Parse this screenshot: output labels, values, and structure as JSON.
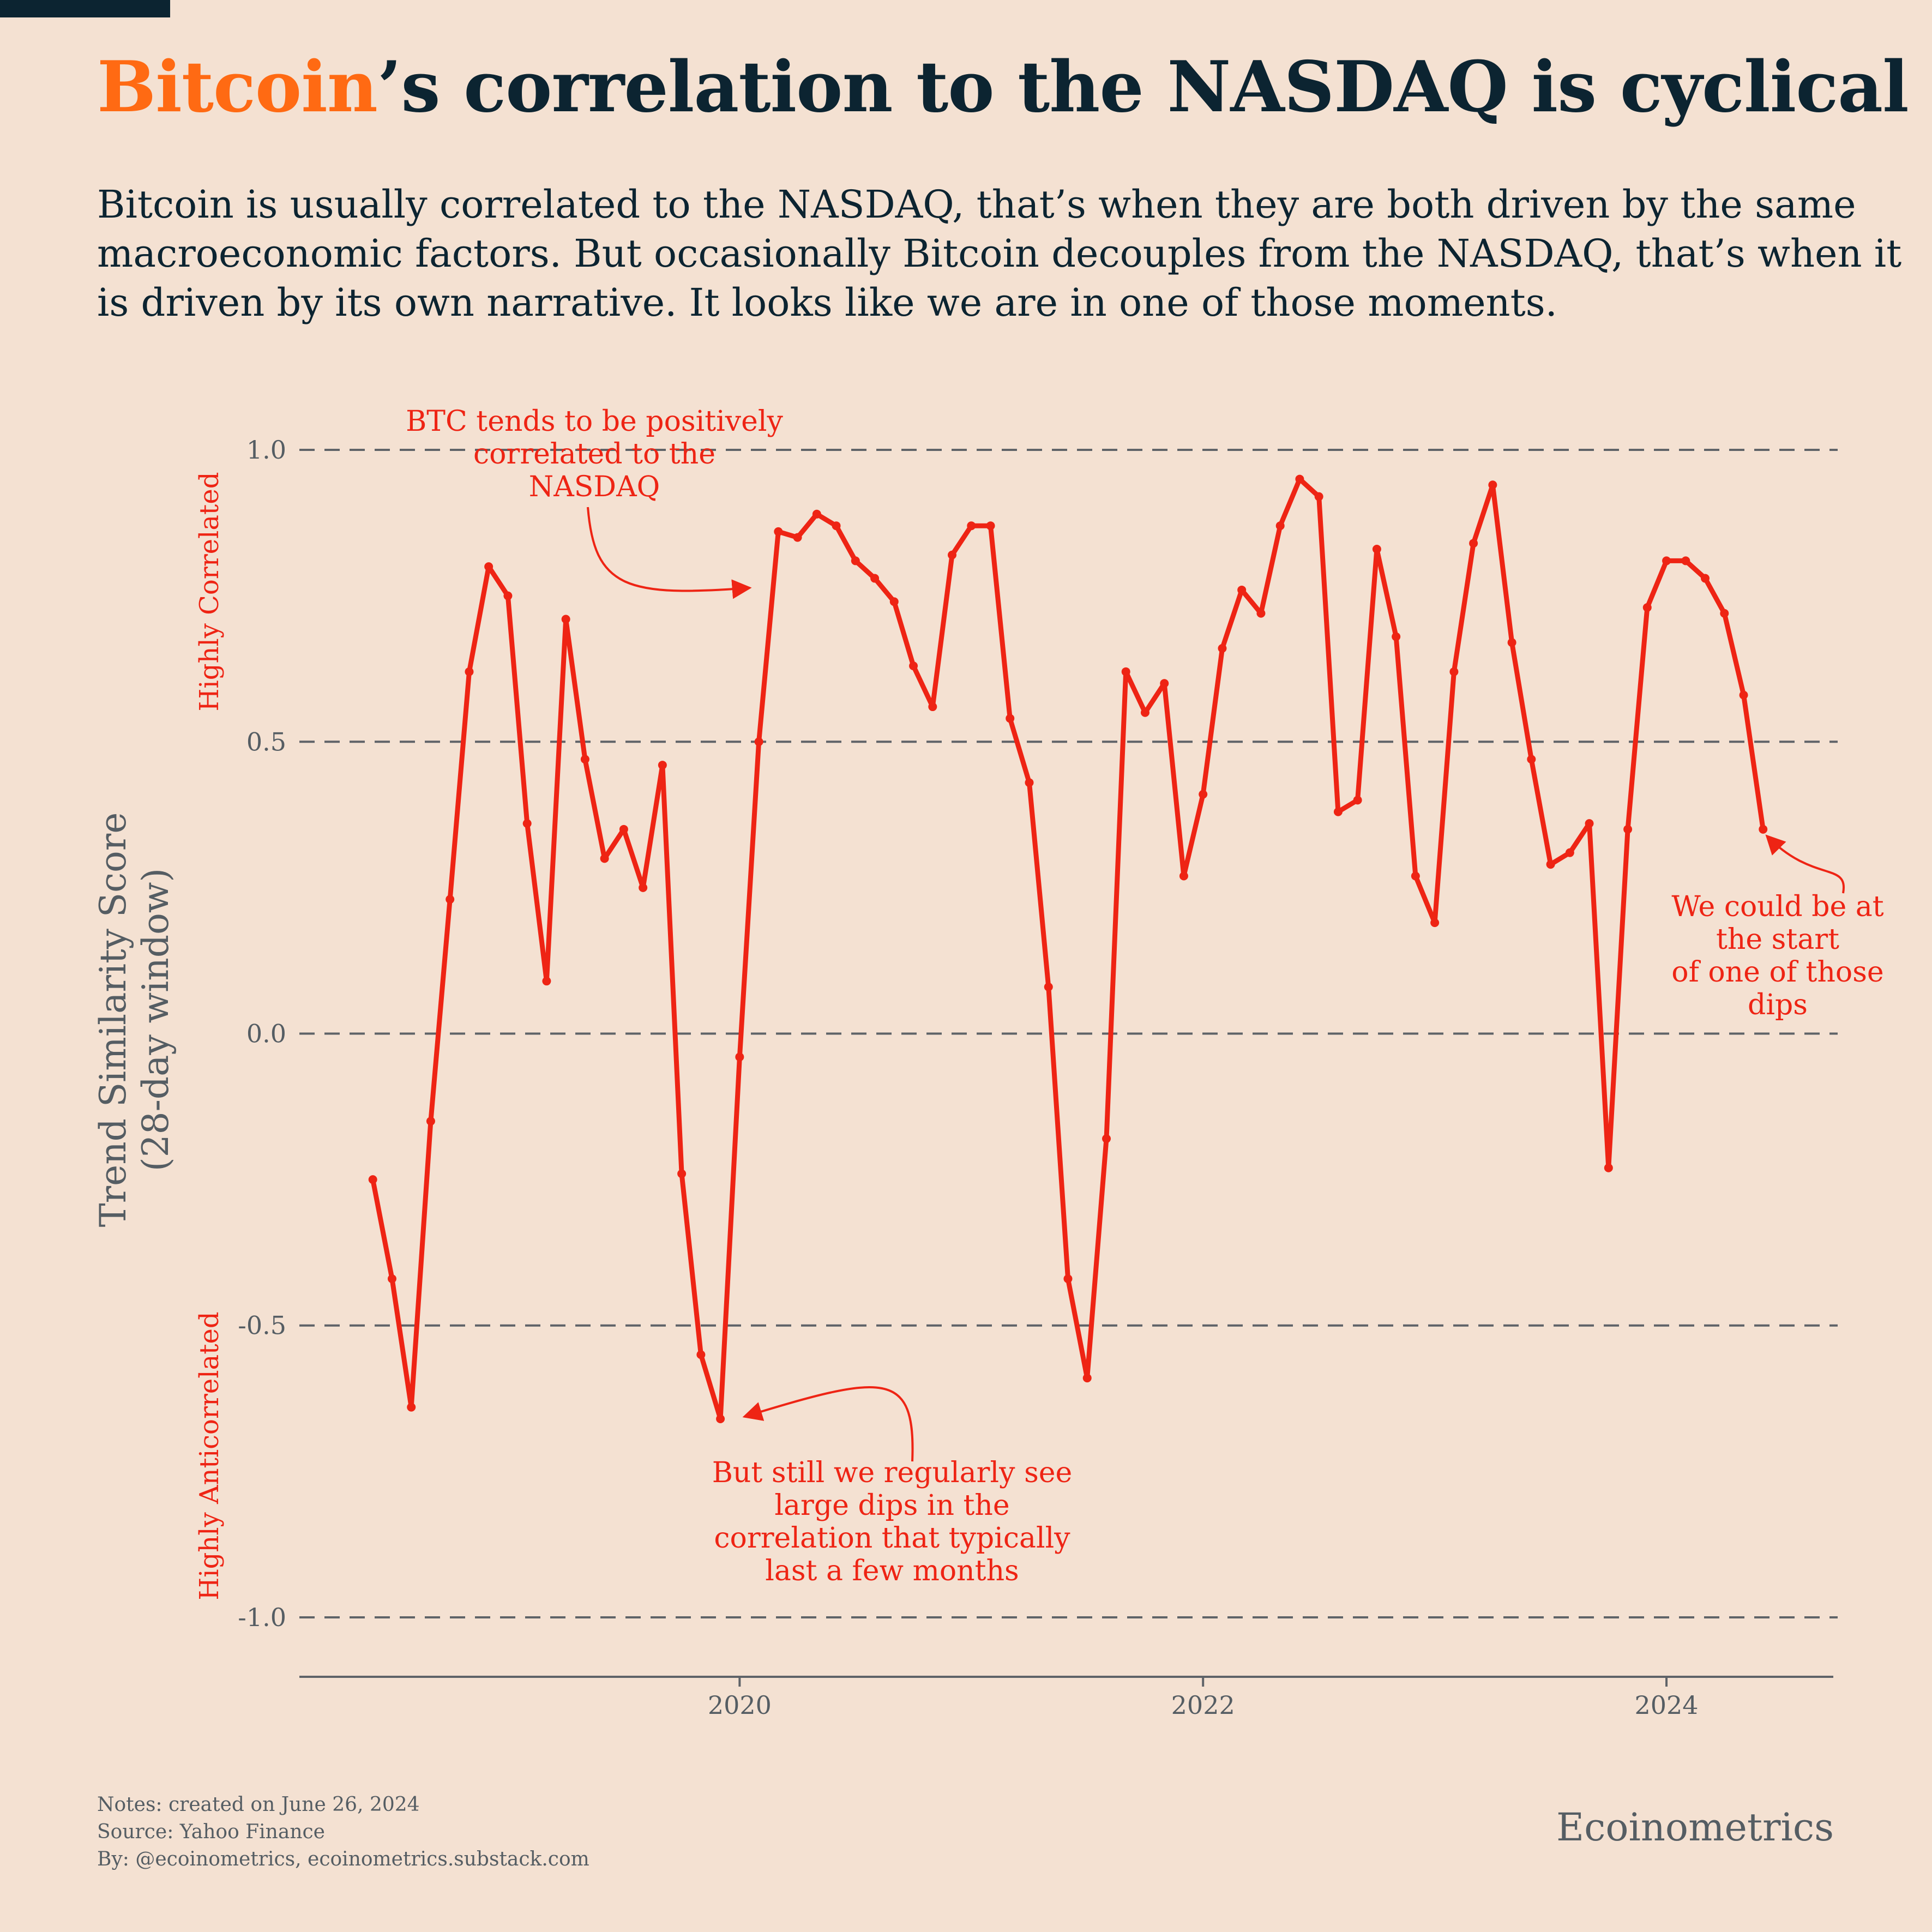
{
  "header": {
    "title_highlight": "Bitcoin",
    "title_rest": "’s correlation to the NASDAQ is cyclical",
    "subtitle": "Bitcoin is usually correlated to the NASDAQ, that’s when they are both driven by the same macroeconomic factors. But occasionally Bitcoin decouples from the NASDAQ, that’s when it is driven by its own narrative. It looks like we are in one of those moments."
  },
  "chart_data": {
    "type": "line",
    "title": "Bitcoin’s correlation to the NASDAQ is cyclical",
    "ylabel_line1": "Trend Similarity Score",
    "ylabel_line2": "(28-day window)",
    "ylim": [
      -1.1,
      1.1
    ],
    "yticks": [
      {
        "value": 1.0,
        "label": "1.0"
      },
      {
        "value": 0.5,
        "label": "0.5"
      },
      {
        "value": 0.0,
        "label": "0.0"
      },
      {
        "value": -0.5,
        "label": "-0.5"
      },
      {
        "value": -1.0,
        "label": "-1.0"
      }
    ],
    "xlim": [
      2018.1,
      2024.72
    ],
    "xticks": [
      {
        "value": 2020,
        "label": "2020"
      },
      {
        "value": 2022,
        "label": "2022"
      },
      {
        "value": 2024,
        "label": "2024"
      }
    ],
    "grid": "horizontal-dashed",
    "band_labels": {
      "top": "Highly Correlated",
      "bottom": "Highly Anticorrelated"
    },
    "color": "#ee2414",
    "series": [
      {
        "x": [
          2018.417,
          2018.5,
          2018.583,
          2018.667,
          2018.75,
          2018.833,
          2018.917,
          2019.0,
          2019.083,
          2019.167,
          2019.25,
          2019.333,
          2019.417,
          2019.5,
          2019.583,
          2019.667,
          2019.75,
          2019.833,
          2019.917,
          2020.0,
          2020.083,
          2020.167,
          2020.25,
          2020.333,
          2020.417,
          2020.5,
          2020.583,
          2020.667,
          2020.75,
          2020.833,
          2020.917,
          2021.0,
          2021.083,
          2021.167,
          2021.25,
          2021.333,
          2021.417,
          2021.5,
          2021.583,
          2021.667,
          2021.75,
          2021.833,
          2021.917,
          2022.0,
          2022.083,
          2022.167,
          2022.25,
          2022.333,
          2022.417,
          2022.5,
          2022.583,
          2022.667,
          2022.75,
          2022.833,
          2022.917,
          2023.0,
          2023.083,
          2023.167,
          2023.25,
          2023.333,
          2023.417,
          2023.5,
          2023.583,
          2023.667,
          2023.75,
          2023.833,
          2023.917,
          2024.0,
          2024.083,
          2024.167,
          2024.25,
          2024.333,
          2024.417
        ],
        "y": [
          -0.25,
          -0.42,
          -0.64,
          -0.15,
          0.23,
          0.62,
          0.8,
          0.75,
          0.36,
          0.09,
          0.71,
          0.47,
          0.3,
          0.35,
          0.25,
          0.46,
          -0.24,
          -0.55,
          -0.66,
          -0.04,
          0.5,
          0.86,
          0.85,
          0.89,
          0.87,
          0.81,
          0.78,
          0.74,
          0.63,
          0.56,
          0.82,
          0.87,
          0.87,
          0.54,
          0.43,
          0.08,
          -0.42,
          -0.59,
          -0.18,
          0.62,
          0.55,
          0.6,
          0.27,
          0.41,
          0.66,
          0.76,
          0.72,
          0.87,
          0.95,
          0.92,
          0.38,
          0.4,
          0.83,
          0.68,
          0.27,
          0.19,
          0.62,
          0.84,
          0.94,
          0.67,
          0.47,
          0.29,
          0.31,
          0.36,
          -0.23,
          0.35,
          0.73,
          0.81,
          0.81,
          0.78,
          0.72,
          0.58,
          0.35
        ]
      }
    ],
    "annotations": [
      {
        "lines": [
          "BTC tends to be positively",
          "correlated to the",
          "NASDAQ"
        ],
        "target_x": 2020.05,
        "target_y": 0.77
      },
      {
        "lines": [
          "But still we regularly see",
          "large dips in the",
          "correlation that typically",
          "last a few months"
        ],
        "target_x": 2020.02,
        "target_y": -0.65
      },
      {
        "lines": [
          "We could be at",
          "the start",
          "of one of those",
          "dips"
        ],
        "target_x": 2024.417,
        "target_y": 0.35
      }
    ]
  },
  "footer": {
    "notes": "Notes: created on June 26, 2024",
    "source": "Source: Yahoo Finance",
    "by": "By: @ecoinometrics, ecoinometrics.substack.com",
    "brand": "Ecoinometrics"
  }
}
